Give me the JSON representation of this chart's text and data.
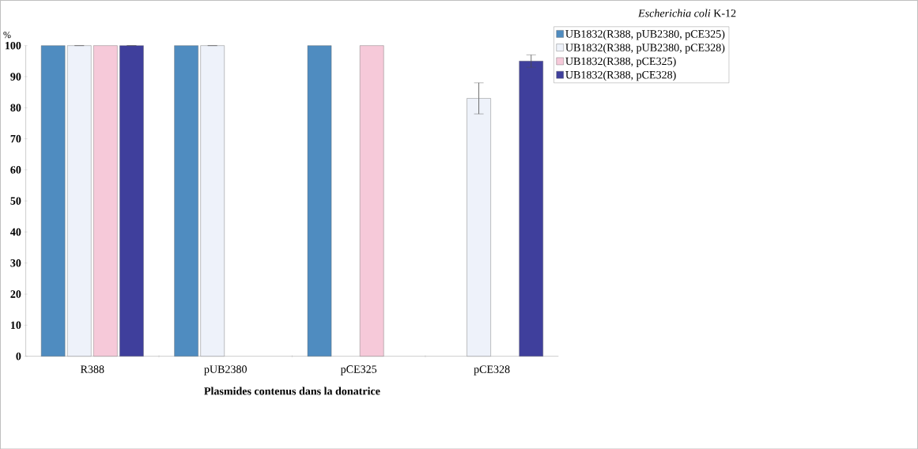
{
  "chart_data": {
    "type": "bar",
    "categories": [
      "R388",
      "pUB2380",
      "pCE325",
      "pCE328"
    ],
    "xlabel": "**Plasmides contenus dans la donatrice**",
    "ylabel": "%",
    "legend_title": "*Escherichia coli* K-12",
    "ylim": [
      0,
      100
    ],
    "yticks": [
      0,
      10,
      20,
      30,
      40,
      50,
      60,
      70,
      80,
      90,
      100
    ],
    "legend": "right",
    "series": [
      {
        "name": "UB1832(R388, pUB2380, pCE325)",
        "color": "#4f8cc0",
        "values": [
          100,
          100,
          100,
          null
        ],
        "errors": [
          null,
          null,
          null,
          null
        ]
      },
      {
        "name": "UB1832(R388, pUB2380, pCE328)",
        "color": "#eef2fa",
        "values": [
          100,
          100,
          null,
          83
        ],
        "errors": [
          null,
          null,
          null,
          5
        ]
      },
      {
        "name": "UB1832(R388, pCE325)",
        "color": "#f6c9d9",
        "values": [
          100,
          null,
          100,
          null
        ],
        "errors": [
          null,
          null,
          null,
          null
        ]
      },
      {
        "name": "UB1832(R388, pCE328)",
        "color": "#3f3f9c",
        "values": [
          100,
          null,
          null,
          95
        ],
        "errors": [
          null,
          null,
          null,
          2
        ]
      }
    ]
  }
}
